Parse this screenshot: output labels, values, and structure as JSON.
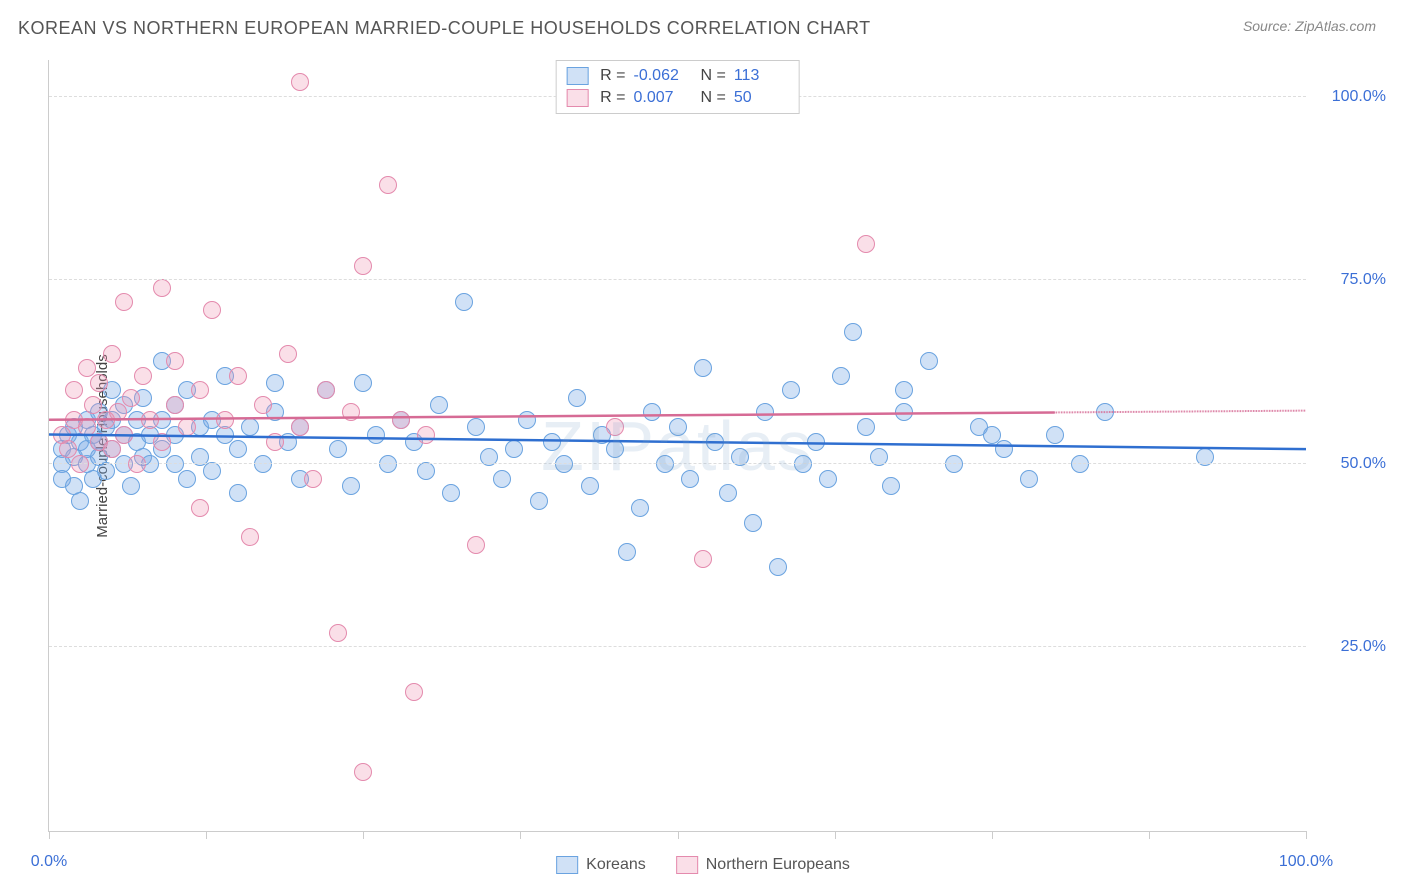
{
  "title": "KOREAN VS NORTHERN EUROPEAN MARRIED-COUPLE HOUSEHOLDS CORRELATION CHART",
  "source_prefix": "Source: ",
  "source_name": "ZipAtlas.com",
  "ylabel": "Married-couple Households",
  "watermark": "ZIPatlas",
  "chart": {
    "type": "scatter",
    "xlim": [
      0,
      100
    ],
    "ylim": [
      0,
      105
    ],
    "background": "#ffffff",
    "grid_color": "#dddddd",
    "axis_color": "#cccccc",
    "yticks": [
      {
        "v": 25,
        "label": "25.0%"
      },
      {
        "v": 50,
        "label": "50.0%"
      },
      {
        "v": 75,
        "label": "75.0%"
      },
      {
        "v": 100,
        "label": "100.0%"
      }
    ],
    "xtick_positions": [
      0,
      12.5,
      25,
      37.5,
      50,
      62.5,
      75,
      87.5,
      100
    ],
    "xtick_labels": {
      "first": "0.0%",
      "last": "100.0%"
    },
    "series": [
      {
        "name": "Koreans",
        "key": "koreans",
        "fill": "rgba(120,170,230,0.35)",
        "stroke": "#6aa3e0",
        "line_color": "#2f6fd0",
        "marker_radius": 9,
        "r_value": "-0.062",
        "n_value": "113",
        "regression": {
          "x1": 0,
          "y1": 54,
          "x2": 100,
          "y2": 52,
          "dash_after": 100
        },
        "points": [
          [
            1,
            52
          ],
          [
            1,
            50
          ],
          [
            1,
            48
          ],
          [
            1.5,
            54
          ],
          [
            2,
            47
          ],
          [
            2,
            51
          ],
          [
            2,
            55
          ],
          [
            2.5,
            45
          ],
          [
            2.5,
            53
          ],
          [
            3,
            50
          ],
          [
            3,
            56
          ],
          [
            3,
            52
          ],
          [
            3.5,
            48
          ],
          [
            3.5,
            54
          ],
          [
            4,
            57
          ],
          [
            4,
            51
          ],
          [
            4,
            53
          ],
          [
            4.5,
            55
          ],
          [
            4.5,
            49
          ],
          [
            5,
            56
          ],
          [
            5,
            52
          ],
          [
            5,
            60
          ],
          [
            6,
            54
          ],
          [
            6,
            50
          ],
          [
            6,
            58
          ],
          [
            6.5,
            47
          ],
          [
            7,
            53
          ],
          [
            7,
            56
          ],
          [
            7.5,
            51
          ],
          [
            7.5,
            59
          ],
          [
            8,
            54
          ],
          [
            8,
            50
          ],
          [
            9,
            64
          ],
          [
            9,
            56
          ],
          [
            9,
            52
          ],
          [
            10,
            58
          ],
          [
            10,
            54
          ],
          [
            10,
            50
          ],
          [
            11,
            48
          ],
          [
            11,
            60
          ],
          [
            12,
            55
          ],
          [
            12,
            51
          ],
          [
            13,
            56
          ],
          [
            13,
            49
          ],
          [
            14,
            62
          ],
          [
            14,
            54
          ],
          [
            15,
            52
          ],
          [
            15,
            46
          ],
          [
            16,
            55
          ],
          [
            17,
            50
          ],
          [
            18,
            57
          ],
          [
            18,
            61
          ],
          [
            19,
            53
          ],
          [
            20,
            48
          ],
          [
            20,
            55
          ],
          [
            22,
            60
          ],
          [
            23,
            52
          ],
          [
            24,
            47
          ],
          [
            25,
            61
          ],
          [
            26,
            54
          ],
          [
            27,
            50
          ],
          [
            28,
            56
          ],
          [
            29,
            53
          ],
          [
            30,
            49
          ],
          [
            31,
            58
          ],
          [
            32,
            46
          ],
          [
            33,
            72
          ],
          [
            34,
            55
          ],
          [
            35,
            51
          ],
          [
            36,
            48
          ],
          [
            37,
            52
          ],
          [
            38,
            56
          ],
          [
            39,
            45
          ],
          [
            40,
            53
          ],
          [
            41,
            50
          ],
          [
            42,
            59
          ],
          [
            43,
            47
          ],
          [
            44,
            54
          ],
          [
            45,
            52
          ],
          [
            46,
            38
          ],
          [
            47,
            44
          ],
          [
            48,
            57
          ],
          [
            49,
            50
          ],
          [
            50,
            55
          ],
          [
            51,
            48
          ],
          [
            52,
            63
          ],
          [
            53,
            53
          ],
          [
            54,
            46
          ],
          [
            55,
            51
          ],
          [
            56,
            42
          ],
          [
            57,
            57
          ],
          [
            58,
            36
          ],
          [
            59,
            60
          ],
          [
            60,
            50
          ],
          [
            61,
            53
          ],
          [
            62,
            48
          ],
          [
            63,
            62
          ],
          [
            64,
            68
          ],
          [
            65,
            55
          ],
          [
            66,
            51
          ],
          [
            67,
            47
          ],
          [
            68,
            57
          ],
          [
            70,
            64
          ],
          [
            72,
            50
          ],
          [
            74,
            55
          ],
          [
            76,
            52
          ],
          [
            78,
            48
          ],
          [
            80,
            54
          ],
          [
            82,
            50
          ],
          [
            84,
            57
          ],
          [
            92,
            51
          ],
          [
            75,
            54
          ],
          [
            68,
            60
          ]
        ]
      },
      {
        "name": "Northern Europeans",
        "key": "neuro",
        "fill": "rgba(240,150,180,0.30)",
        "stroke": "#e48aad",
        "line_color": "#d66b95",
        "marker_radius": 9,
        "r_value": "0.007",
        "n_value": "50",
        "regression": {
          "x1": 0,
          "y1": 56,
          "x2": 80,
          "y2": 57,
          "dash_after": 80
        },
        "points": [
          [
            1,
            54
          ],
          [
            1.5,
            52
          ],
          [
            2,
            56
          ],
          [
            2,
            60
          ],
          [
            2.5,
            50
          ],
          [
            3,
            63
          ],
          [
            3,
            55
          ],
          [
            3.5,
            58
          ],
          [
            4,
            53
          ],
          [
            4,
            61
          ],
          [
            4.5,
            56
          ],
          [
            5,
            65
          ],
          [
            5,
            52
          ],
          [
            5.5,
            57
          ],
          [
            6,
            72
          ],
          [
            6,
            54
          ],
          [
            6.5,
            59
          ],
          [
            7,
            50
          ],
          [
            7.5,
            62
          ],
          [
            8,
            56
          ],
          [
            9,
            74
          ],
          [
            9,
            53
          ],
          [
            10,
            58
          ],
          [
            10,
            64
          ],
          [
            11,
            55
          ],
          [
            12,
            44
          ],
          [
            12,
            60
          ],
          [
            13,
            71
          ],
          [
            14,
            56
          ],
          [
            15,
            62
          ],
          [
            16,
            40
          ],
          [
            17,
            58
          ],
          [
            18,
            53
          ],
          [
            19,
            65
          ],
          [
            20,
            55
          ],
          [
            21,
            48
          ],
          [
            22,
            60
          ],
          [
            23,
            27
          ],
          [
            24,
            57
          ],
          [
            25,
            8
          ],
          [
            25,
            77
          ],
          [
            27,
            88
          ],
          [
            28,
            56
          ],
          [
            29,
            19
          ],
          [
            30,
            54
          ],
          [
            34,
            39
          ],
          [
            45,
            55
          ],
          [
            52,
            37
          ],
          [
            65,
            80
          ],
          [
            20,
            102
          ]
        ]
      }
    ]
  }
}
